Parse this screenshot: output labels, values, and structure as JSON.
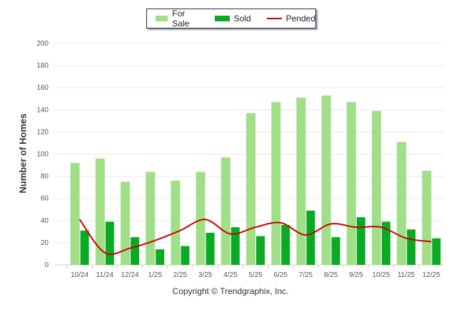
{
  "chart_data": {
    "type": "bar",
    "title": "",
    "xlabel": "",
    "ylabel": "Number of Homes",
    "ylim": [
      0,
      200
    ],
    "yticks": [
      0,
      20,
      40,
      60,
      80,
      100,
      120,
      140,
      160,
      180,
      200
    ],
    "grid": true,
    "legend_position": "top-center",
    "categories": [
      "10/24",
      "11/24",
      "12/24",
      "1/25",
      "2/25",
      "3/25",
      "4/25",
      "5/25",
      "6/25",
      "7/25",
      "8/25",
      "9/25",
      "10/25",
      "11/25",
      "12/25"
    ],
    "series": [
      {
        "name": "For Sale",
        "type": "bar",
        "color": "#a0df88",
        "values": [
          92,
          96,
          75,
          84,
          76,
          84,
          97,
          137,
          147,
          151,
          153,
          147,
          139,
          111,
          85
        ]
      },
      {
        "name": "Sold",
        "type": "bar",
        "color": "#0aaa24",
        "values": [
          31,
          39,
          25,
          14,
          17,
          29,
          34,
          26,
          36,
          49,
          25,
          43,
          39,
          32,
          24
        ]
      },
      {
        "name": "Pended",
        "type": "line",
        "color": "#cc0000",
        "values": [
          41,
          11,
          15,
          22,
          31,
          41,
          28,
          34,
          38,
          27,
          37,
          34,
          34,
          24,
          21
        ]
      }
    ]
  },
  "copyright": "Copyright © Trendgraphix, Inc."
}
